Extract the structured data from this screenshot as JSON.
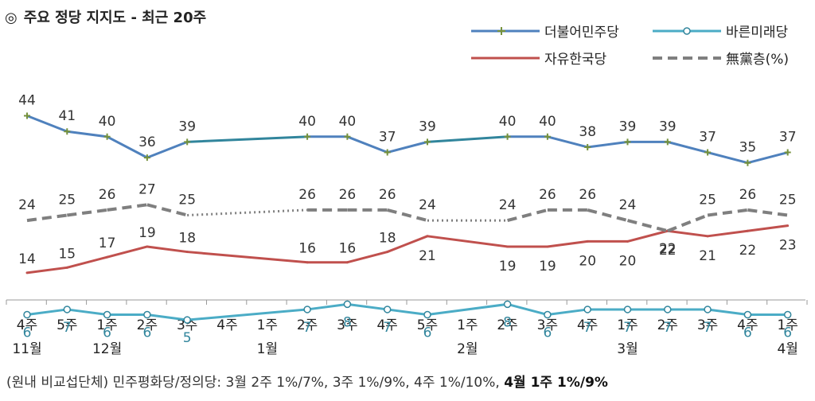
{
  "title_symbol": "◎",
  "title": "주요 정당 지지도 - 최근 20주",
  "note_prefix": "(원내 비교섭단체) 민주평화당/정의당: 3월 2주 1%/7%, 3주 1%/9%, 4주 1%/10%, ",
  "note_bold": "4월 1주  1%/9%",
  "colors": {
    "democratic": "#4f81bd",
    "bareun": "#4bacc6",
    "liberty": "#c0504d",
    "none": "#7f7f7f",
    "axis": "#999999"
  },
  "chart_data": {
    "type": "line",
    "categories": [
      {
        "week": "4주",
        "month": "11월"
      },
      {
        "week": "5주",
        "month": ""
      },
      {
        "week": "1주",
        "month": "12월"
      },
      {
        "week": "2주",
        "month": ""
      },
      {
        "week": "3주",
        "month": ""
      },
      {
        "week": "4주",
        "month": ""
      },
      {
        "week": "1주",
        "month": "1월"
      },
      {
        "week": "2주",
        "month": ""
      },
      {
        "week": "3주",
        "month": ""
      },
      {
        "week": "4주",
        "month": ""
      },
      {
        "week": "5주",
        "month": ""
      },
      {
        "week": "1주",
        "month": "2월"
      },
      {
        "week": "2주",
        "month": ""
      },
      {
        "week": "3주",
        "month": ""
      },
      {
        "week": "4주",
        "month": ""
      },
      {
        "week": "1주",
        "month": "3월"
      },
      {
        "week": "2주",
        "month": ""
      },
      {
        "week": "3주",
        "month": ""
      },
      {
        "week": "4주",
        "month": ""
      },
      {
        "week": "1주",
        "month": "4월"
      }
    ],
    "series": [
      {
        "key": "democratic",
        "name": "더불어민주당",
        "marker": "plus",
        "values": [
          44,
          41,
          40,
          36,
          39,
          null,
          null,
          40,
          40,
          37,
          39,
          null,
          40,
          40,
          38,
          39,
          39,
          37,
          35,
          37
        ]
      },
      {
        "key": "bareun",
        "name": "바른미래당",
        "marker": "circle",
        "values": [
          6,
          7,
          6,
          6,
          5,
          null,
          null,
          7,
          8,
          7,
          6,
          null,
          8,
          6,
          7,
          7,
          7,
          7,
          6,
          6
        ]
      },
      {
        "key": "liberty",
        "name": "자유한국당",
        "marker": "none",
        "values": [
          14,
          15,
          17,
          19,
          18,
          null,
          null,
          16,
          16,
          18,
          21,
          null,
          19,
          19,
          20,
          20,
          22,
          21,
          22,
          23
        ]
      },
      {
        "key": "none",
        "name": "無黨층(%)",
        "marker": "dash",
        "values": [
          24,
          25,
          26,
          27,
          25,
          null,
          null,
          26,
          26,
          26,
          24,
          null,
          24,
          26,
          26,
          24,
          22,
          25,
          26,
          25
        ]
      }
    ],
    "ylim": [
      0,
      50
    ],
    "grid": false,
    "legend_position": "top-right"
  }
}
